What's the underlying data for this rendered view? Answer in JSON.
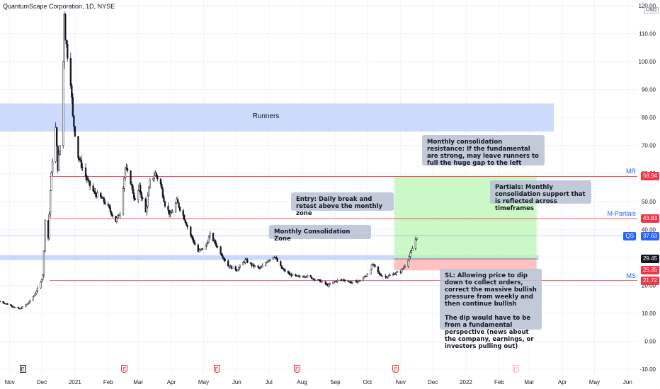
{
  "symbol": {
    "title": "QuantumScape Corporation, 1D, NYSE",
    "currency": "USD"
  },
  "chart_data": {
    "type": "candlestick",
    "title": "QuantumScape Corporation, 1D, NYSE",
    "y_axis": {
      "ticks": [
        -10,
        0,
        10,
        20,
        30,
        40,
        50,
        60,
        70,
        80,
        90,
        100,
        110,
        120
      ],
      "tick_labels": [
        "-10.00",
        "0.00",
        "10.00",
        "20.00",
        "30.00",
        "40.00",
        "50.00",
        "60.00",
        "70.00",
        "80.00",
        "90.00",
        "100.00",
        "110.00",
        "120.00"
      ],
      "range": [
        -12,
        122
      ]
    },
    "x_axis": {
      "tick_labels": [
        "Nov",
        "Dec",
        "2021",
        "Feb",
        "Mar",
        "Apr",
        "May",
        "Jun",
        "Jul",
        "Aug",
        "Sep",
        "Oct",
        "Nov",
        "Dec",
        "2022",
        "Feb",
        "Mar",
        "Apr",
        "May",
        "Jun"
      ],
      "tick_dates": [
        "2020-11-01",
        "2020-12-01",
        "2021-01-01",
        "2021-02-01",
        "2021-03-01",
        "2021-04-01",
        "2021-05-01",
        "2021-06-01",
        "2021-07-01",
        "2021-08-01",
        "2021-09-01",
        "2021-10-01",
        "2021-11-01",
        "2021-12-01",
        "2022-01-01",
        "2022-02-01",
        "2022-03-01",
        "2022-04-01",
        "2022-05-01",
        "2022-06-01"
      ],
      "range": [
        "2020-10-23",
        "2022-06-10"
      ]
    },
    "price_path": [
      [
        "2020-10-23",
        14.3
      ],
      [
        "2020-11-02",
        12.8
      ],
      [
        "2020-11-10",
        11.5
      ],
      [
        "2020-11-18",
        13.5
      ],
      [
        "2020-11-24",
        16.5
      ],
      [
        "2020-11-30",
        21.0
      ],
      [
        "2020-12-02",
        24.0
      ],
      [
        "2020-12-03",
        32.0
      ],
      [
        "2020-12-04",
        44.0
      ],
      [
        "2020-12-07",
        37.0
      ],
      [
        "2020-12-09",
        54.0
      ],
      [
        "2020-12-11",
        65.0
      ],
      [
        "2020-12-14",
        76.0
      ],
      [
        "2020-12-16",
        62.0
      ],
      [
        "2020-12-18",
        70.0
      ],
      [
        "2020-12-21",
        100.0
      ],
      [
        "2020-12-22",
        118.0
      ],
      [
        "2020-12-23",
        109.0
      ],
      [
        "2020-12-28",
        93.0
      ],
      [
        "2020-12-30",
        80.0
      ],
      [
        "2021-01-04",
        66.0
      ],
      [
        "2021-01-08",
        62.0
      ],
      [
        "2021-01-13",
        57.0
      ],
      [
        "2021-01-19",
        53.0
      ],
      [
        "2021-01-26",
        51.0
      ],
      [
        "2021-02-01",
        48.0
      ],
      [
        "2021-02-08",
        43.0
      ],
      [
        "2021-02-12",
        46.0
      ],
      [
        "2021-02-17",
        62.0
      ],
      [
        "2021-02-22",
        57.0
      ],
      [
        "2021-02-26",
        50.0
      ],
      [
        "2021-03-02",
        55.0
      ],
      [
        "2021-03-08",
        46.0
      ],
      [
        "2021-03-12",
        57.0
      ],
      [
        "2021-03-17",
        60.0
      ],
      [
        "2021-03-22",
        56.0
      ],
      [
        "2021-03-26",
        49.0
      ],
      [
        "2021-03-31",
        45.0
      ],
      [
        "2021-04-06",
        50.0
      ],
      [
        "2021-04-12",
        45.0
      ],
      [
        "2021-04-19",
        38.0
      ],
      [
        "2021-04-26",
        32.0
      ],
      [
        "2021-05-03",
        34.0
      ],
      [
        "2021-05-07",
        38.0
      ],
      [
        "2021-05-12",
        35.0
      ],
      [
        "2021-05-18",
        31.0
      ],
      [
        "2021-05-24",
        27.0
      ],
      [
        "2021-06-01",
        25.5
      ],
      [
        "2021-06-09",
        29.0
      ],
      [
        "2021-06-16",
        27.0
      ],
      [
        "2021-06-23",
        26.0
      ],
      [
        "2021-06-30",
        29.0
      ],
      [
        "2021-07-06",
        30.5
      ],
      [
        "2021-07-13",
        26.0
      ],
      [
        "2021-07-20",
        24.0
      ],
      [
        "2021-07-28",
        23.0
      ],
      [
        "2021-08-04",
        23.5
      ],
      [
        "2021-08-11",
        22.5
      ],
      [
        "2021-08-18",
        21.5
      ],
      [
        "2021-08-25",
        20.0
      ],
      [
        "2021-09-01",
        21.5
      ],
      [
        "2021-09-09",
        22.0
      ],
      [
        "2021-09-16",
        21.0
      ],
      [
        "2021-09-23",
        21.5
      ],
      [
        "2021-09-30",
        23.5
      ],
      [
        "2021-10-06",
        27.5
      ],
      [
        "2021-10-12",
        24.0
      ],
      [
        "2021-10-18",
        23.0
      ],
      [
        "2021-10-25",
        24.0
      ],
      [
        "2021-11-01",
        25.0
      ],
      [
        "2021-11-04",
        26.5
      ],
      [
        "2021-11-08",
        29.5
      ],
      [
        "2021-11-11",
        32.0
      ],
      [
        "2021-11-16",
        37.6
      ]
    ],
    "horizontal_levels": [
      {
        "name": "MR",
        "price": 58.94,
        "color": "#f23645"
      },
      {
        "name": "M-Partials",
        "price": 43.83,
        "color": "#f23645"
      },
      {
        "name": "MS",
        "price": 21.72,
        "color": "#f23645"
      }
    ],
    "zones": [
      {
        "name": "Runners",
        "from": 75,
        "to": 85,
        "color": "#c7d6fb"
      },
      {
        "name": "Monthly Consolidation Zone",
        "from": 29.45,
        "to": 30.4,
        "color": "#c7d6fb"
      }
    ],
    "position": {
      "entry": 29.45,
      "target": 59.13,
      "stop": 25.35,
      "start_date": "2021-10-26",
      "end_date": "2022-03-08"
    },
    "price_tags": [
      {
        "label": "59.13",
        "price": 59.13,
        "bg": "#00e676",
        "fg": "#000000"
      },
      {
        "label": "58.94",
        "price": 58.94,
        "bg": "#f23645",
        "fg": "#ffffff"
      },
      {
        "label": "43.83",
        "price": 43.83,
        "bg": "#f23645",
        "fg": "#ffffff"
      },
      {
        "label": "37.63",
        "price": 37.63,
        "bg": "#2962ff",
        "fg": "#ffffff"
      },
      {
        "label": "29.45",
        "price": 29.45,
        "bg": "#131722",
        "fg": "#ffffff"
      },
      {
        "label": "25.35",
        "price": 25.35,
        "bg": "#f23645",
        "fg": "#ffffff"
      },
      {
        "label": "21.72",
        "price": 21.72,
        "bg": "#f23645",
        "fg": "#ffffff"
      }
    ],
    "current_price": {
      "symbol": "QS",
      "price": 37.63
    },
    "events": [
      {
        "type": "dividend-split",
        "glyph": "E",
        "date": "2020-11-13",
        "color": "#131722"
      },
      {
        "type": "earnings",
        "glyph": "E",
        "date": "2021-02-16",
        "color": "#f23645"
      },
      {
        "type": "earnings",
        "glyph": "E",
        "date": "2021-05-13",
        "color": "#f23645"
      },
      {
        "type": "earnings",
        "glyph": "E",
        "date": "2021-07-27",
        "color": "#f23645"
      },
      {
        "type": "earnings",
        "glyph": "E",
        "date": "2021-10-27",
        "color": "#f23645"
      },
      {
        "type": "earnings-future",
        "glyph": "E",
        "date": "2022-02-16",
        "color": "#f7a9c0"
      }
    ]
  },
  "annotations": {
    "runners": "Runners",
    "mr_label": "MR",
    "mpartials_label": "M-Partials",
    "ms_label": "MS",
    "resistance_note": "Monthly consolidation resistance: If the fundamental are strong, may leave runners to full the huge gap to the left",
    "partials_note": "Partials: Monthly consolidation support that is reflected across timeframes",
    "entry_note": "Entry: Daily break and retest above the monthly zone",
    "zone_note": "Monthly Consolidation Zone",
    "sl_note": "SL: Allowing price to dip down to collect orders, correct the massive bullish pressure from weekly and then continue bullish\n\nThe dip would have to be from a fundamental perspective (news about the company, earnings, or investors pulling out)"
  }
}
